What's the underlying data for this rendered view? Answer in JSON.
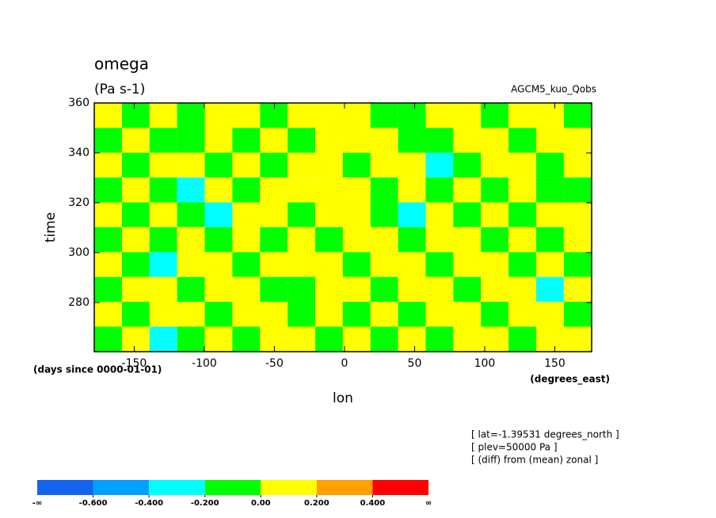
{
  "chart_data": {
    "type": "contour",
    "title": "omega",
    "subtitle": "(Pa s-1)",
    "annotation": "AGCM5_kuo_Qobs",
    "xlabel": "lon",
    "ylabel": "time",
    "x_units": "(degrees_east)",
    "y_units": "(days since 0000-01-01)",
    "notes": [
      "[ lat=-1.39531 degrees_north ]",
      "[ plev=50000 Pa ]",
      "[ (diff) from (mean) zonal ]"
    ],
    "xlim": [
      -178.5,
      176.3
    ],
    "ylim": [
      260.3,
      360
    ],
    "xticks": [
      -150,
      -100,
      -50,
      0,
      50,
      100,
      150
    ],
    "yticks": [
      280,
      300,
      320,
      340,
      360
    ],
    "x": [
      -168.6,
      -148.9,
      -129.2,
      -109.5,
      -89.8,
      -70.1,
      -50.4,
      -30.7,
      -11.0,
      8.7,
      28.4,
      48.1,
      67.8,
      87.5,
      107.2,
      126.9,
      146.6,
      166.3
    ],
    "y": [
      355.0,
      345.0,
      335.1,
      325.1,
      315.2,
      305.2,
      295.2,
      285.3,
      275.3,
      265.3
    ],
    "z": [
      [
        0.1,
        -0.1,
        0.1,
        -0.1,
        0.1,
        0.1,
        -0.1,
        0.1,
        0.1,
        0.1,
        -0.1,
        -0.1,
        0.1,
        0.1,
        -0.1,
        0.1,
        0.1,
        -0.1
      ],
      [
        -0.1,
        0.1,
        -0.1,
        -0.1,
        0.1,
        -0.1,
        0.1,
        -0.1,
        0.1,
        0.1,
        0.1,
        -0.1,
        -0.1,
        0.1,
        0.1,
        -0.1,
        0.1,
        0.1
      ],
      [
        0.1,
        -0.1,
        0.1,
        0.1,
        -0.1,
        0.1,
        -0.1,
        0.1,
        0.1,
        -0.1,
        0.1,
        0.1,
        -0.3,
        -0.1,
        0.1,
        0.1,
        -0.1,
        0.1
      ],
      [
        -0.1,
        0.1,
        -0.1,
        -0.3,
        0.1,
        -0.1,
        0.1,
        0.1,
        0.1,
        0.1,
        -0.1,
        0.1,
        -0.1,
        0.1,
        -0.1,
        0.1,
        -0.1,
        -0.1
      ],
      [
        0.1,
        -0.1,
        0.1,
        -0.1,
        -0.3,
        0.1,
        0.1,
        -0.1,
        0.1,
        0.1,
        -0.1,
        -0.3,
        0.1,
        -0.1,
        0.1,
        -0.1,
        0.1,
        0.1
      ],
      [
        -0.1,
        0.1,
        -0.1,
        0.1,
        -0.1,
        0.1,
        -0.1,
        0.1,
        -0.1,
        0.1,
        0.1,
        -0.1,
        0.1,
        0.1,
        -0.1,
        0.1,
        -0.1,
        0.1
      ],
      [
        0.1,
        -0.1,
        -0.3,
        0.1,
        0.1,
        -0.1,
        0.1,
        0.1,
        0.1,
        -0.1,
        0.1,
        0.1,
        -0.1,
        0.1,
        0.1,
        -0.1,
        0.1,
        -0.1
      ],
      [
        -0.1,
        0.1,
        0.1,
        -0.1,
        0.1,
        0.1,
        -0.1,
        -0.1,
        0.1,
        0.1,
        -0.1,
        0.1,
        0.1,
        -0.1,
        0.1,
        0.1,
        -0.3,
        0.1
      ],
      [
        0.1,
        -0.1,
        0.1,
        0.1,
        -0.1,
        0.1,
        0.1,
        -0.1,
        0.1,
        -0.1,
        0.1,
        -0.1,
        0.1,
        0.1,
        -0.1,
        0.1,
        0.1,
        -0.1
      ],
      [
        -0.1,
        0.1,
        -0.3,
        -0.1,
        0.1,
        -0.1,
        0.1,
        0.1,
        -0.1,
        0.1,
        -0.1,
        0.1,
        -0.1,
        0.1,
        0.1,
        -0.1,
        0.1,
        0.1
      ]
    ],
    "colorbar": {
      "levels": [
        -0.6,
        -0.4,
        -0.2,
        0,
        0.2,
        0.4
      ],
      "level_labels": [
        "-0.600",
        "-0.400",
        "-0.200",
        "0.00",
        "0.200",
        "0.400"
      ],
      "low_label": "-∞",
      "high_label": "∞",
      "colors": [
        "#1464f0",
        "#00a0ff",
        "#00ffff",
        "#00ff00",
        "#ffff00",
        "#ffa000",
        "#ff0000"
      ]
    }
  }
}
